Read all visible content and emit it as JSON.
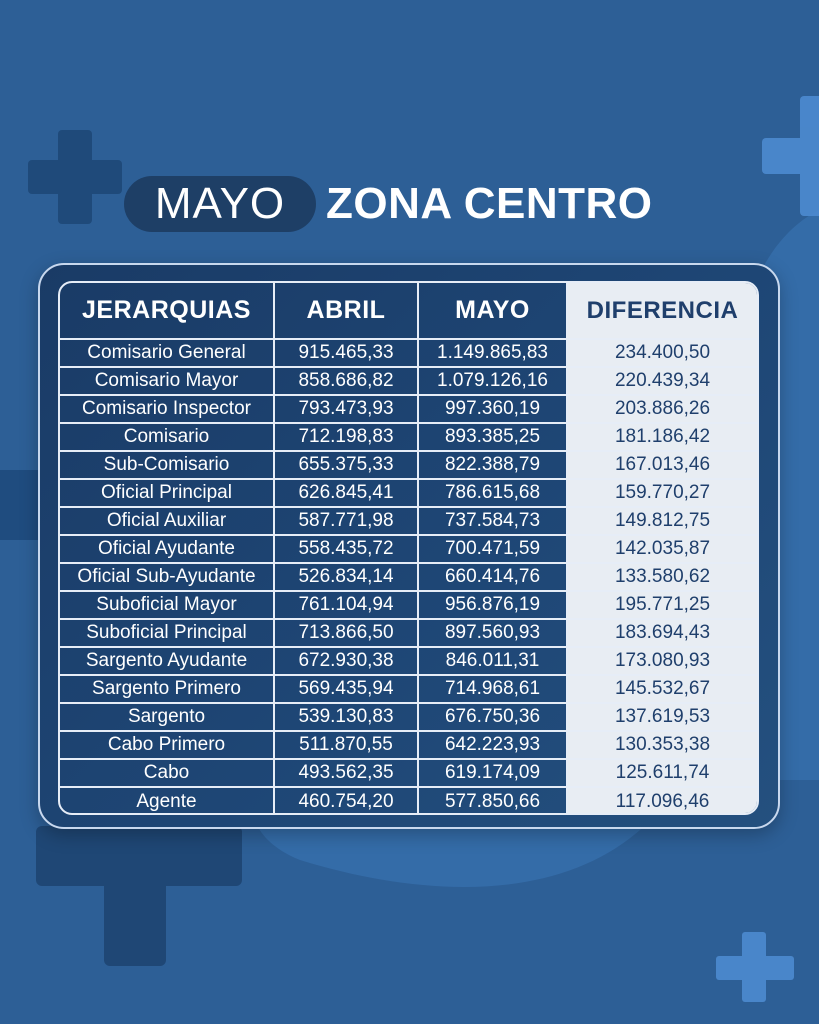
{
  "title": {
    "month": "MAYO",
    "zone": "ZONA CENTRO"
  },
  "colors": {
    "background": "#2d5f96",
    "panel": "#1e4675",
    "diff_column": "#e8edf3",
    "diff_text": "#1f3f6c"
  },
  "chart_data": {
    "type": "table",
    "columns": [
      "JERARQUIAS",
      "ABRIL",
      "MAYO",
      "DIFERENCIA"
    ],
    "rows": [
      [
        "Comisario General",
        "915.465,33",
        "1.149.865,83",
        "234.400,50"
      ],
      [
        "Comisario Mayor",
        "858.686,82",
        "1.079.126,16",
        "220.439,34"
      ],
      [
        "Comisario Inspector",
        "793.473,93",
        "997.360,19",
        "203.886,26"
      ],
      [
        "Comisario",
        "712.198,83",
        "893.385,25",
        "181.186,42"
      ],
      [
        "Sub-Comisario",
        "655.375,33",
        "822.388,79",
        "167.013,46"
      ],
      [
        "Oficial Principal",
        "626.845,41",
        "786.615,68",
        "159.770,27"
      ],
      [
        "Oficial Auxiliar",
        "587.771,98",
        "737.584,73",
        "149.812,75"
      ],
      [
        "Oficial Ayudante",
        "558.435,72",
        "700.471,59",
        "142.035,87"
      ],
      [
        "Oficial Sub-Ayudante",
        "526.834,14",
        "660.414,76",
        "133.580,62"
      ],
      [
        "Suboficial Mayor",
        "761.104,94",
        "956.876,19",
        "195.771,25"
      ],
      [
        "Suboficial Principal",
        "713.866,50",
        "897.560,93",
        "183.694,43"
      ],
      [
        "Sargento Ayudante",
        "672.930,38",
        "846.011,31",
        "173.080,93"
      ],
      [
        "Sargento Primero",
        "569.435,94",
        "714.968,61",
        "145.532,67"
      ],
      [
        "Sargento",
        "539.130,83",
        "676.750,36",
        "137.619,53"
      ],
      [
        "Cabo Primero",
        "511.870,55",
        "642.223,93",
        "130.353,38"
      ],
      [
        "Cabo",
        "493.562,35",
        "619.174,09",
        "125.611,74"
      ],
      [
        "Agente",
        "460.754,20",
        "577.850,66",
        "117.096,46"
      ]
    ]
  }
}
